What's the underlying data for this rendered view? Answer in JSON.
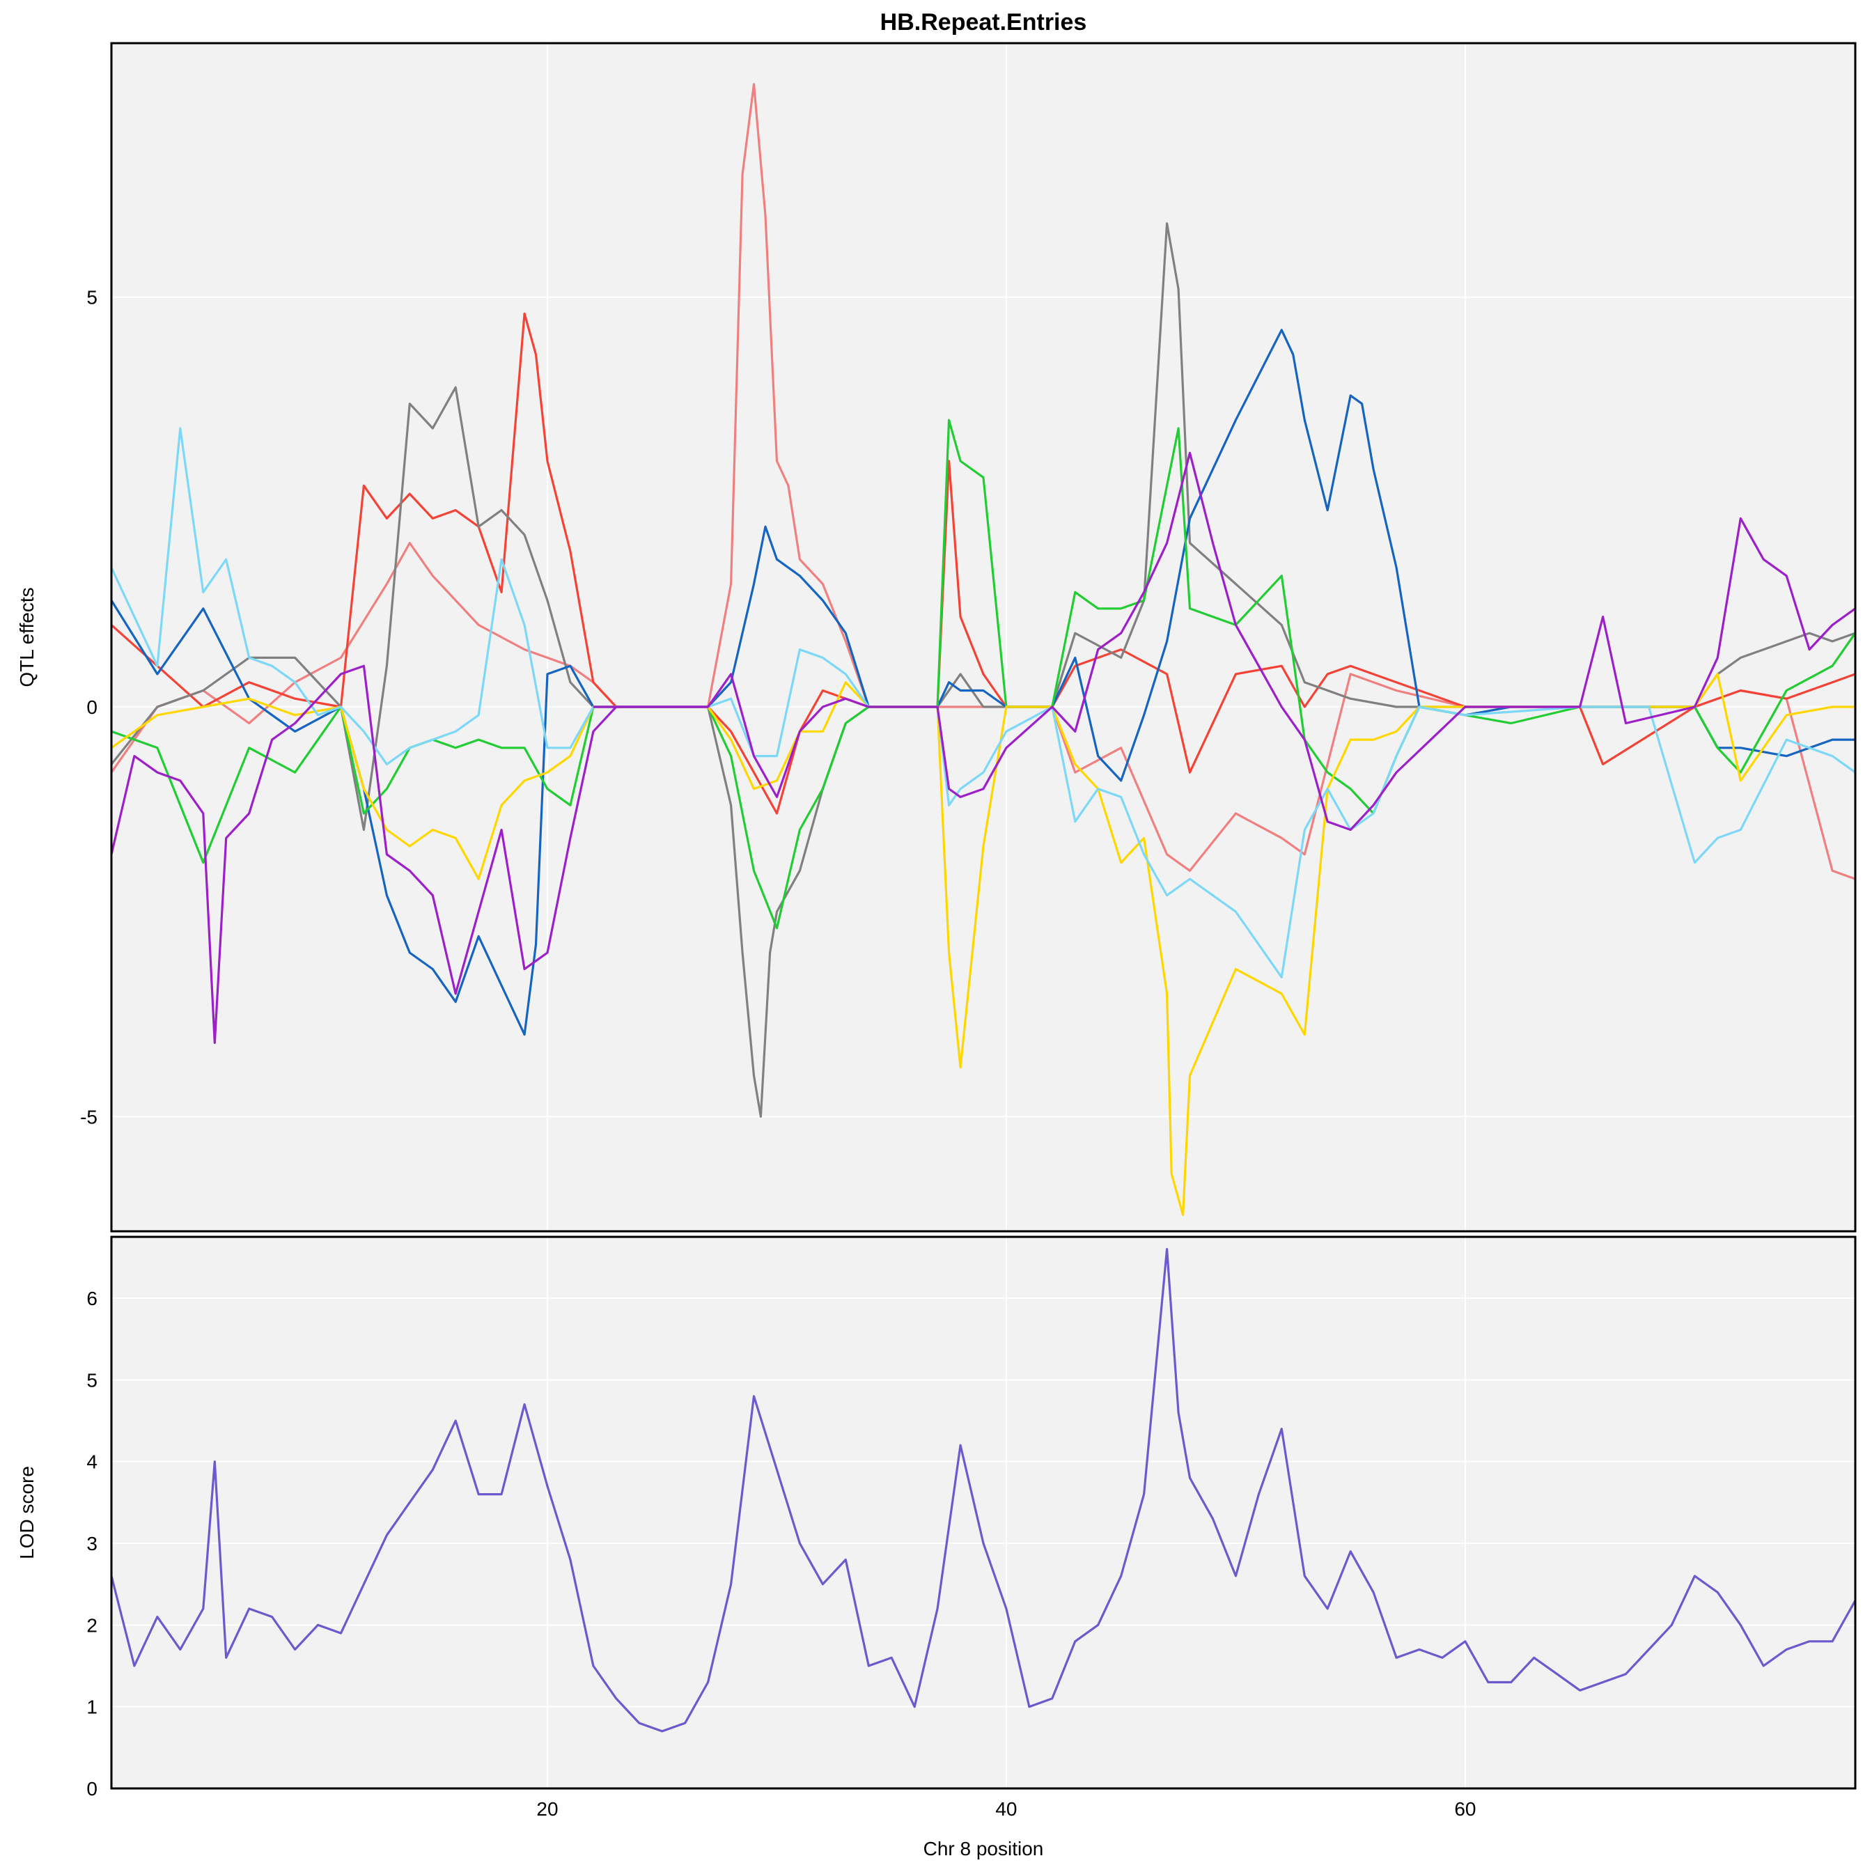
{
  "chart_data": [
    {
      "type": "line",
      "panel": "top",
      "title": "HB.Repeat.Entries",
      "xlabel": "",
      "ylabel": "QTL effects",
      "xlim": [
        1,
        77
      ],
      "ylim": [
        -6.4,
        8.1
      ],
      "yticks": [
        -5,
        0,
        5
      ],
      "ytick_labels": [
        "-5",
        "0",
        "5"
      ],
      "grid": true,
      "series": [
        {
          "color": "#F08080",
          "x": [
            1,
            3,
            5,
            7,
            9,
            11,
            13,
            14,
            15,
            17,
            19,
            21,
            22,
            23,
            27,
            28,
            28.5,
            29,
            29.5,
            30,
            30.5,
            31,
            32,
            33,
            34,
            37,
            38,
            39,
            40,
            42,
            43,
            45,
            47,
            48,
            50,
            52,
            53,
            55,
            57,
            60,
            62,
            65,
            68,
            70,
            72,
            74,
            76,
            77
          ],
          "values": [
            -0.8,
            0,
            0.2,
            -0.2,
            0.3,
            0.6,
            1.5,
            2.0,
            1.6,
            1.0,
            0.7,
            0.5,
            0.3,
            0,
            0,
            1.5,
            6.5,
            7.6,
            6.0,
            3.0,
            2.7,
            1.8,
            1.5,
            0.8,
            0,
            0,
            0,
            0,
            0,
            0,
            -0.8,
            -0.5,
            -1.8,
            -2.0,
            -1.3,
            -1.6,
            -1.8,
            0.4,
            0.2,
            0,
            0,
            0,
            0,
            0,
            0.2,
            0.1,
            -2.0,
            -2.1
          ]
        },
        {
          "color": "#F44336",
          "x": [
            1,
            3,
            5,
            7,
            9,
            11,
            12,
            13,
            14,
            15,
            16,
            17,
            18,
            19,
            19.5,
            20,
            21,
            22,
            23,
            27,
            28,
            29,
            30,
            31,
            32,
            33,
            34,
            37,
            37.5,
            38,
            39,
            40,
            42,
            43,
            45,
            47,
            48,
            50,
            52,
            53,
            54,
            55,
            57,
            60,
            65,
            66,
            70,
            72,
            74,
            76,
            77
          ],
          "values": [
            1.0,
            0.5,
            0.0,
            0.3,
            0.1,
            0,
            2.7,
            2.3,
            2.6,
            2.3,
            2.4,
            2.2,
            1.4,
            4.8,
            4.3,
            3.0,
            1.9,
            0.3,
            0,
            0,
            -0.3,
            -0.8,
            -1.3,
            -0.3,
            0.2,
            0.1,
            0,
            0,
            3.0,
            1.1,
            0.4,
            0,
            0,
            0.5,
            0.7,
            0.4,
            -0.8,
            0.4,
            0.5,
            0,
            0.4,
            0.5,
            0.3,
            0,
            0,
            -0.7,
            0,
            0.2,
            0.1,
            0.3,
            0.4
          ]
        },
        {
          "color": "#808080",
          "x": [
            1,
            3,
            5,
            7,
            9,
            11,
            12,
            13,
            14,
            15,
            16,
            17,
            18,
            19,
            20,
            21,
            22,
            23,
            27,
            28,
            28.5,
            29,
            29.3,
            29.7,
            30,
            31,
            32,
            33,
            34,
            37,
            38,
            39,
            40,
            42,
            43,
            45,
            46,
            47,
            47.5,
            48,
            50,
            52,
            53,
            55,
            57,
            60,
            65,
            68,
            70,
            71,
            72,
            74,
            75,
            76,
            77
          ],
          "values": [
            -0.7,
            0,
            0.2,
            0.6,
            0.6,
            0,
            -1.5,
            0.5,
            3.7,
            3.4,
            3.9,
            2.2,
            2.4,
            2.1,
            1.3,
            0.3,
            0,
            0,
            0,
            -1.2,
            -3.0,
            -4.5,
            -5.0,
            -3.0,
            -2.5,
            -2.0,
            -1.0,
            -0.2,
            0,
            0,
            0.4,
            0,
            0,
            0,
            0.9,
            0.6,
            1.3,
            5.9,
            5.1,
            2.0,
            1.5,
            1.0,
            0.3,
            0.1,
            0,
            0,
            0,
            0,
            0,
            0.4,
            0.6,
            0.8,
            0.9,
            0.8,
            0.9
          ]
        },
        {
          "color": "#1565C0",
          "x": [
            1,
            3,
            5,
            7,
            9,
            11,
            12,
            13,
            14,
            15,
            16,
            17,
            18,
            19,
            19.5,
            20,
            21,
            22,
            23,
            27,
            28,
            29,
            29.5,
            30,
            31,
            32,
            33,
            34,
            37,
            37.5,
            38,
            39,
            40,
            42,
            43,
            44,
            45,
            46,
            47,
            48,
            50,
            52,
            52.5,
            53,
            54,
            55,
            55.5,
            56,
            57,
            58,
            60,
            62,
            65,
            68,
            70,
            71,
            72,
            74,
            76,
            77
          ],
          "values": [
            1.3,
            0.4,
            1.2,
            0.1,
            -0.3,
            0,
            -1.0,
            -2.3,
            -3.0,
            -3.2,
            -3.6,
            -2.8,
            -3.4,
            -4.0,
            -2.9,
            0.4,
            0.5,
            0,
            0,
            0,
            0.3,
            1.5,
            2.2,
            1.8,
            1.6,
            1.3,
            0.9,
            0,
            0,
            0.3,
            0.2,
            0.2,
            0,
            0,
            0.6,
            -0.6,
            -0.9,
            -0.1,
            0.8,
            2.3,
            3.5,
            4.6,
            4.3,
            3.5,
            2.4,
            3.8,
            3.7,
            2.9,
            1.7,
            0,
            -0.1,
            0,
            0,
            0,
            0,
            -0.5,
            -0.5,
            -0.6,
            -0.4,
            -0.4
          ]
        },
        {
          "color": "#22CC33",
          "x": [
            1,
            3,
            5,
            7,
            9,
            11,
            12,
            13,
            14,
            15,
            16,
            17,
            18,
            19,
            20,
            21,
            22,
            23,
            27,
            28,
            29,
            30,
            31,
            32,
            33,
            34,
            37,
            37.5,
            38,
            39,
            40,
            42,
            43,
            44,
            45,
            46,
            47,
            47.5,
            48,
            50,
            52,
            53,
            54,
            55,
            56,
            57,
            58,
            60,
            62,
            65,
            68,
            70,
            71,
            72,
            74,
            76,
            77
          ],
          "values": [
            -0.3,
            -0.5,
            -1.9,
            -0.5,
            -0.8,
            0,
            -1.3,
            -1.0,
            -0.5,
            -0.4,
            -0.5,
            -0.4,
            -0.5,
            -0.5,
            -1.0,
            -1.2,
            0,
            0,
            0,
            -0.6,
            -2.0,
            -2.7,
            -1.5,
            -1.0,
            -0.2,
            0,
            0,
            3.5,
            3.0,
            2.8,
            0,
            0,
            1.4,
            1.2,
            1.2,
            1.3,
            2.7,
            3.4,
            1.2,
            1.0,
            1.6,
            -0.4,
            -0.8,
            -1.0,
            -1.3,
            -0.6,
            0,
            -0.1,
            -0.2,
            0,
            0,
            0,
            -0.5,
            -0.8,
            0.2,
            0.5,
            0.9
          ]
        },
        {
          "color": "#FFD700",
          "x": [
            1,
            3,
            5,
            7,
            9,
            11,
            12,
            13,
            14,
            15,
            16,
            17,
            18,
            19,
            20,
            21,
            22,
            23,
            27,
            28,
            29,
            30,
            31,
            32,
            33,
            34,
            37,
            37.5,
            38,
            39,
            40,
            42,
            43,
            44,
            45,
            46,
            47,
            47.2,
            47.7,
            48,
            50,
            52,
            53,
            54,
            55,
            56,
            57,
            58,
            60,
            65,
            70,
            71,
            72,
            74,
            76,
            77
          ],
          "values": [
            -0.5,
            -0.1,
            0,
            0.1,
            -0.1,
            0,
            -1.0,
            -1.5,
            -1.7,
            -1.5,
            -1.6,
            -2.1,
            -1.2,
            -0.9,
            -0.8,
            -0.6,
            0,
            0,
            0,
            -0.4,
            -1.0,
            -0.9,
            -0.3,
            -0.3,
            0.3,
            0,
            0,
            -3.0,
            -4.4,
            -1.7,
            0,
            0,
            -0.7,
            -1.0,
            -1.9,
            -1.6,
            -3.5,
            -5.7,
            -6.2,
            -4.5,
            -3.2,
            -3.5,
            -4.0,
            -1.0,
            -0.4,
            -0.4,
            -0.3,
            0,
            0,
            0,
            0,
            0.4,
            -0.9,
            -0.1,
            0.0,
            0.0
          ]
        },
        {
          "color": "#7DD8F8",
          "x": [
            1,
            3,
            4,
            5,
            6,
            7,
            8,
            9,
            10,
            11,
            12,
            13,
            14,
            15,
            16,
            17,
            18,
            19,
            20,
            21,
            22,
            23,
            27,
            28,
            29,
            30,
            31,
            32,
            33,
            34,
            37,
            37.5,
            38,
            39,
            40,
            42,
            43,
            44,
            45,
            46,
            47,
            48,
            50,
            52,
            53,
            54,
            55,
            56,
            57,
            58,
            60,
            65,
            68,
            70,
            71,
            72,
            74,
            76,
            77
          ],
          "values": [
            1.7,
            0.5,
            3.4,
            1.4,
            1.8,
            0.6,
            0.5,
            0.3,
            -0.1,
            0,
            -0.3,
            -0.7,
            -0.5,
            -0.4,
            -0.3,
            -0.1,
            1.8,
            1.0,
            -0.5,
            -0.5,
            0,
            0,
            0,
            0.1,
            -0.6,
            -0.6,
            0.7,
            0.6,
            0.4,
            0,
            0,
            -1.2,
            -1.0,
            -0.8,
            -0.3,
            0,
            -1.4,
            -1.0,
            -1.1,
            -1.8,
            -2.3,
            -2.1,
            -2.5,
            -3.3,
            -1.5,
            -1.0,
            -1.5,
            -1.3,
            -0.6,
            0,
            -0.1,
            0,
            0,
            -1.9,
            -1.6,
            -1.5,
            -0.4,
            -0.6,
            -0.8
          ]
        },
        {
          "color": "#9C1FC8",
          "x": [
            1,
            2,
            3,
            4,
            5,
            5.5,
            6,
            7,
            8,
            9,
            10,
            11,
            12,
            13,
            14,
            15,
            16,
            17,
            18,
            19,
            20,
            21,
            22,
            23,
            27,
            28,
            29,
            30,
            31,
            32,
            33,
            34,
            37,
            37.5,
            38,
            39,
            40,
            42,
            43,
            44,
            45,
            46,
            47,
            48,
            49,
            50,
            51,
            52,
            53,
            54,
            55,
            56,
            57,
            60,
            65,
            66,
            67,
            70,
            71,
            72,
            73,
            74,
            75,
            76,
            77
          ],
          "values": [
            -1.8,
            -0.6,
            -0.8,
            -0.9,
            -1.3,
            -4.1,
            -1.6,
            -1.3,
            -0.4,
            -0.2,
            0.1,
            0.4,
            0.5,
            -1.8,
            -2.0,
            -2.3,
            -3.5,
            -2.5,
            -1.5,
            -3.2,
            -3.0,
            -1.6,
            -0.3,
            0,
            0,
            0.4,
            -0.6,
            -1.1,
            -0.3,
            0,
            0.1,
            0,
            0,
            -1.0,
            -1.1,
            -1.0,
            -0.5,
            0,
            -0.3,
            0.7,
            0.9,
            1.4,
            2.0,
            3.1,
            2.0,
            1.0,
            0.5,
            0.0,
            -0.4,
            -1.4,
            -1.5,
            -1.2,
            -0.8,
            0,
            0,
            1.1,
            -0.2,
            0,
            0.6,
            2.3,
            1.8,
            1.6,
            0.7,
            1.0,
            1.2
          ]
        },
        {
          "color": "#9C1FC8",
          "x": [
            22,
            27
          ],
          "values": [
            0,
            0
          ]
        }
      ]
    },
    {
      "type": "line",
      "panel": "bottom",
      "title": "",
      "xlabel": "Chr 8 position",
      "ylabel": "LOD score",
      "xlim": [
        1,
        77
      ],
      "ylim": [
        0,
        6.75
      ],
      "xticks": [
        20,
        40,
        60
      ],
      "xtick_labels": [
        "20",
        "40",
        "60"
      ],
      "yticks": [
        0,
        1,
        2,
        3,
        4,
        5,
        6
      ],
      "ytick_labels": [
        "0",
        "1",
        "2",
        "3",
        "4",
        "5",
        "6"
      ],
      "grid": true,
      "series": [
        {
          "color": "#6A5ACD",
          "x": [
            1,
            2,
            3,
            4,
            5,
            5.5,
            6,
            7,
            8,
            9,
            10,
            11,
            12,
            13,
            14,
            15,
            16,
            17,
            18,
            19,
            20,
            21,
            22,
            23,
            24,
            25,
            26,
            27,
            28,
            29,
            30,
            31,
            32,
            33,
            34,
            35,
            36,
            37,
            38,
            39,
            40,
            41,
            42,
            43,
            44,
            45,
            46,
            47,
            47.5,
            48,
            49,
            50,
            51,
            52,
            53,
            54,
            55,
            56,
            57,
            58,
            59,
            60,
            61,
            62,
            63,
            64,
            65,
            66,
            67,
            68,
            69,
            70,
            71,
            72,
            73,
            74,
            75,
            76,
            77
          ],
          "values": [
            2.6,
            1.5,
            2.1,
            1.7,
            2.2,
            4.0,
            1.6,
            2.2,
            2.1,
            1.7,
            2.0,
            1.9,
            2.5,
            3.1,
            3.5,
            3.9,
            4.5,
            3.6,
            3.6,
            4.7,
            3.7,
            2.8,
            1.5,
            1.1,
            0.8,
            0.7,
            0.8,
            1.3,
            2.5,
            4.8,
            3.9,
            3.0,
            2.5,
            2.8,
            1.5,
            1.6,
            1.0,
            2.2,
            4.2,
            3.0,
            2.2,
            1.0,
            1.1,
            1.8,
            2.0,
            2.6,
            3.6,
            6.6,
            4.6,
            3.8,
            3.3,
            2.6,
            3.6,
            4.4,
            2.6,
            2.2,
            2.9,
            2.4,
            1.6,
            1.7,
            1.6,
            1.8,
            1.3,
            1.3,
            1.6,
            1.4,
            1.2,
            1.3,
            1.4,
            1.7,
            2.0,
            2.6,
            2.4,
            2.0,
            1.5,
            1.7,
            1.8,
            1.8,
            2.3
          ]
        }
      ]
    }
  ]
}
